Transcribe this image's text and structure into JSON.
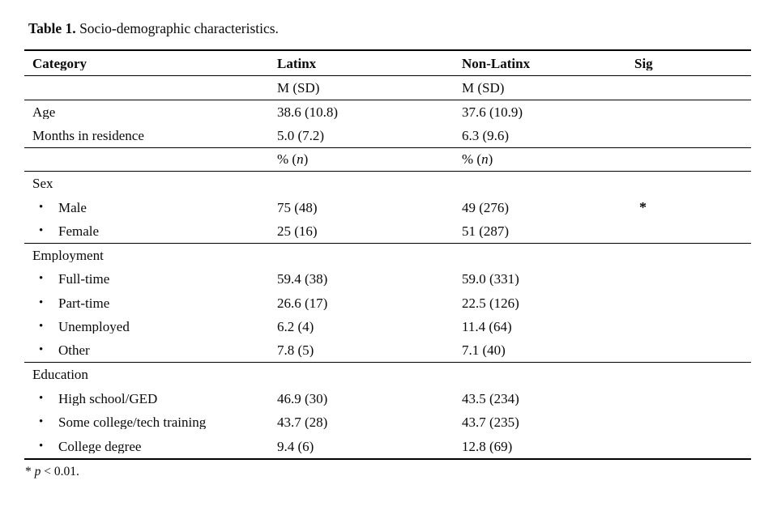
{
  "title": {
    "label": "Table 1.",
    "caption": "Socio-demographic characteristics."
  },
  "table": {
    "bullet_char": "•",
    "columns": [
      {
        "label": "Category"
      },
      {
        "label": "Latinx"
      },
      {
        "label": "Non-Latinx"
      },
      {
        "label": "Sig"
      }
    ],
    "rows": [
      {
        "category": "",
        "latinx": "M (SD)",
        "nonlatinx": "M (SD)",
        "sig": "",
        "bullet": false,
        "rule_below": true
      },
      {
        "category": "Age",
        "latinx": "38.6 (10.8)",
        "nonlatinx": "37.6 (10.9)",
        "sig": "",
        "bullet": false,
        "rule_below": false
      },
      {
        "category": "Months in residence",
        "latinx": "5.0 (7.2)",
        "nonlatinx": "6.3 (9.6)",
        "sig": "",
        "bullet": false,
        "rule_below": true
      },
      {
        "category": "",
        "latinx": "% (n)",
        "nonlatinx": "% (n)",
        "sig": "",
        "bullet": false,
        "italic_n": true,
        "rule_below": true
      },
      {
        "category": "Sex",
        "latinx": "",
        "nonlatinx": "",
        "sig": "",
        "bullet": false,
        "rule_below": false
      },
      {
        "category": "Male",
        "latinx": "75 (48)",
        "nonlatinx": "49 (276)",
        "sig": "*",
        "bullet": true,
        "rule_below": false
      },
      {
        "category": "Female",
        "latinx": "25 (16)",
        "nonlatinx": "51 (287)",
        "sig": "",
        "bullet": true,
        "rule_below": true
      },
      {
        "category": "Employment",
        "latinx": "",
        "nonlatinx": "",
        "sig": "",
        "bullet": false,
        "rule_below": false
      },
      {
        "category": "Full-time",
        "latinx": "59.4 (38)",
        "nonlatinx": "59.0 (331)",
        "sig": "",
        "bullet": true,
        "rule_below": false
      },
      {
        "category": "Part-time",
        "latinx": "26.6 (17)",
        "nonlatinx": "22.5 (126)",
        "sig": "",
        "bullet": true,
        "rule_below": false
      },
      {
        "category": "Unemployed",
        "latinx": "6.2 (4)",
        "nonlatinx": "11.4 (64)",
        "sig": "",
        "bullet": true,
        "rule_below": false
      },
      {
        "category": "Other",
        "latinx": "7.8 (5)",
        "nonlatinx": "7.1 (40)",
        "sig": "",
        "bullet": true,
        "rule_below": true
      },
      {
        "category": "Education",
        "latinx": "",
        "nonlatinx": "",
        "sig": "",
        "bullet": false,
        "rule_below": false
      },
      {
        "category": "High school/GED",
        "latinx": "46.9 (30)",
        "nonlatinx": "43.5 (234)",
        "sig": "",
        "bullet": true,
        "rule_below": false
      },
      {
        "category": "Some college/tech training",
        "latinx": "43.7 (28)",
        "nonlatinx": "43.7 (235)",
        "sig": "",
        "bullet": true,
        "rule_below": false
      },
      {
        "category": "College degree",
        "latinx": "9.4 (6)",
        "nonlatinx": "12.8 (69)",
        "sig": "",
        "bullet": true,
        "rule_below": false
      }
    ]
  },
  "footnote": {
    "symbol": "*",
    "variable": "p",
    "text": "< 0.01."
  }
}
